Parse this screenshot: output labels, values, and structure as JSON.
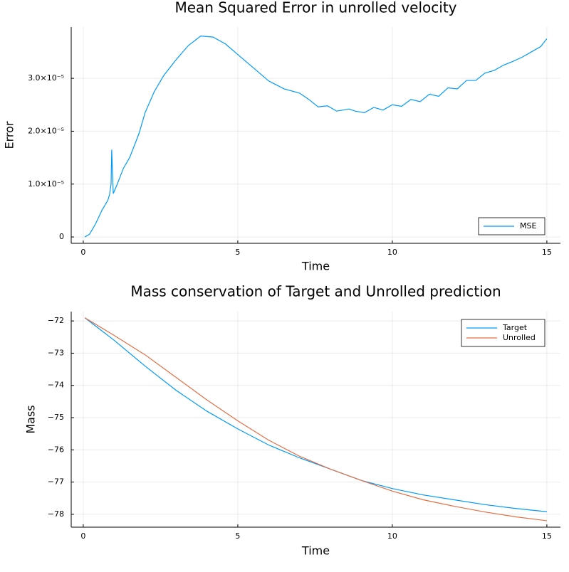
{
  "chart_data": [
    {
      "type": "line",
      "title": "Mean Squared Error in unrolled velocity",
      "x_label": "Time",
      "y_label": "Error",
      "xlim": [
        -0.39,
        15.44
      ],
      "ylim": [
        -1.2e-06,
        3.97e-05
      ],
      "xticks": [
        0,
        5,
        10,
        15
      ],
      "yticks": [
        0,
        {
          "value": 1e-05,
          "label": "1.0×10⁻⁵"
        },
        {
          "value": 2e-05,
          "label": "2.0×10⁻⁵"
        },
        {
          "value": 3e-05,
          "label": "3.0×10⁻⁵"
        }
      ],
      "grid": true,
      "legend": "bottom-right",
      "x": [
        0.05,
        0.2,
        0.4,
        0.6,
        0.8,
        0.85,
        0.9,
        0.92,
        0.97,
        1.1,
        1.3,
        1.5,
        1.8,
        2.0,
        2.3,
        2.6,
        3.0,
        3.4,
        3.8,
        4.2,
        4.6,
        5.0,
        5.5,
        6.0,
        6.5,
        7.0,
        7.3,
        7.6,
        7.9,
        8.2,
        8.6,
        8.8,
        9.1,
        9.4,
        9.7,
        10.0,
        10.3,
        10.6,
        10.9,
        11.2,
        11.5,
        11.8,
        12.1,
        12.4,
        12.7,
        13.0,
        13.3,
        13.6,
        13.9,
        14.2,
        14.5,
        14.8,
        15.0
      ],
      "series": [
        {
          "name": "MSE",
          "color": "#009afa",
          "values": [
            0,
            5e-07,
            2.5e-06,
            5e-06,
            7e-06,
            8e-06,
            1e-05,
            1.65e-05,
            8.2e-06,
            1e-05,
            1.3e-05,
            1.5e-05,
            1.95e-05,
            2.35e-05,
            2.75e-05,
            3.05e-05,
            3.35e-05,
            3.62e-05,
            3.8e-05,
            3.78e-05,
            3.65e-05,
            3.45e-05,
            3.2e-05,
            2.95e-05,
            2.8e-05,
            2.72e-05,
            2.6e-05,
            2.46e-05,
            2.48e-05,
            2.38e-05,
            2.42e-05,
            2.38e-05,
            2.35e-05,
            2.45e-05,
            2.4e-05,
            2.5e-05,
            2.47e-05,
            2.6e-05,
            2.56e-05,
            2.7e-05,
            2.66e-05,
            2.82e-05,
            2.8e-05,
            2.96e-05,
            2.96e-05,
            3.1e-05,
            3.15e-05,
            3.25e-05,
            3.32e-05,
            3.4e-05,
            3.5e-05,
            3.6e-05,
            3.75e-05
          ]
        }
      ]
    },
    {
      "type": "line",
      "title": "Mass conservation of Target and Unrolled prediction",
      "x_label": "Time",
      "y_label": "Mass",
      "xlim": [
        -0.39,
        15.44
      ],
      "ylim": [
        -78.4,
        -71.71
      ],
      "xticks": [
        0,
        5,
        10,
        15
      ],
      "yticks": [
        {
          "value": -72,
          "label": "−72"
        },
        {
          "value": -73,
          "label": "−73"
        },
        {
          "value": -74,
          "label": "−74"
        },
        {
          "value": -75,
          "label": "−75"
        },
        {
          "value": -76,
          "label": "−76"
        },
        {
          "value": -77,
          "label": "−77"
        },
        {
          "value": -78,
          "label": "−78"
        }
      ],
      "grid": true,
      "legend": "top-right",
      "x": [
        0.05,
        1,
        2,
        3,
        4,
        5,
        6,
        7,
        8,
        9,
        10,
        11,
        12,
        13,
        14,
        15
      ],
      "series": [
        {
          "name": "Target",
          "color": "#009afa",
          "values": [
            -71.9,
            -72.6,
            -73.4,
            -74.15,
            -74.8,
            -75.35,
            -75.85,
            -76.25,
            -76.6,
            -76.95,
            -77.2,
            -77.4,
            -77.55,
            -77.7,
            -77.82,
            -77.92
          ]
        },
        {
          "name": "Unrolled",
          "color": "#e26f46",
          "values": [
            -71.9,
            -72.45,
            -73.05,
            -73.75,
            -74.45,
            -75.1,
            -75.7,
            -76.2,
            -76.6,
            -76.95,
            -77.28,
            -77.55,
            -77.75,
            -77.93,
            -78.08,
            -78.2
          ]
        }
      ]
    }
  ]
}
